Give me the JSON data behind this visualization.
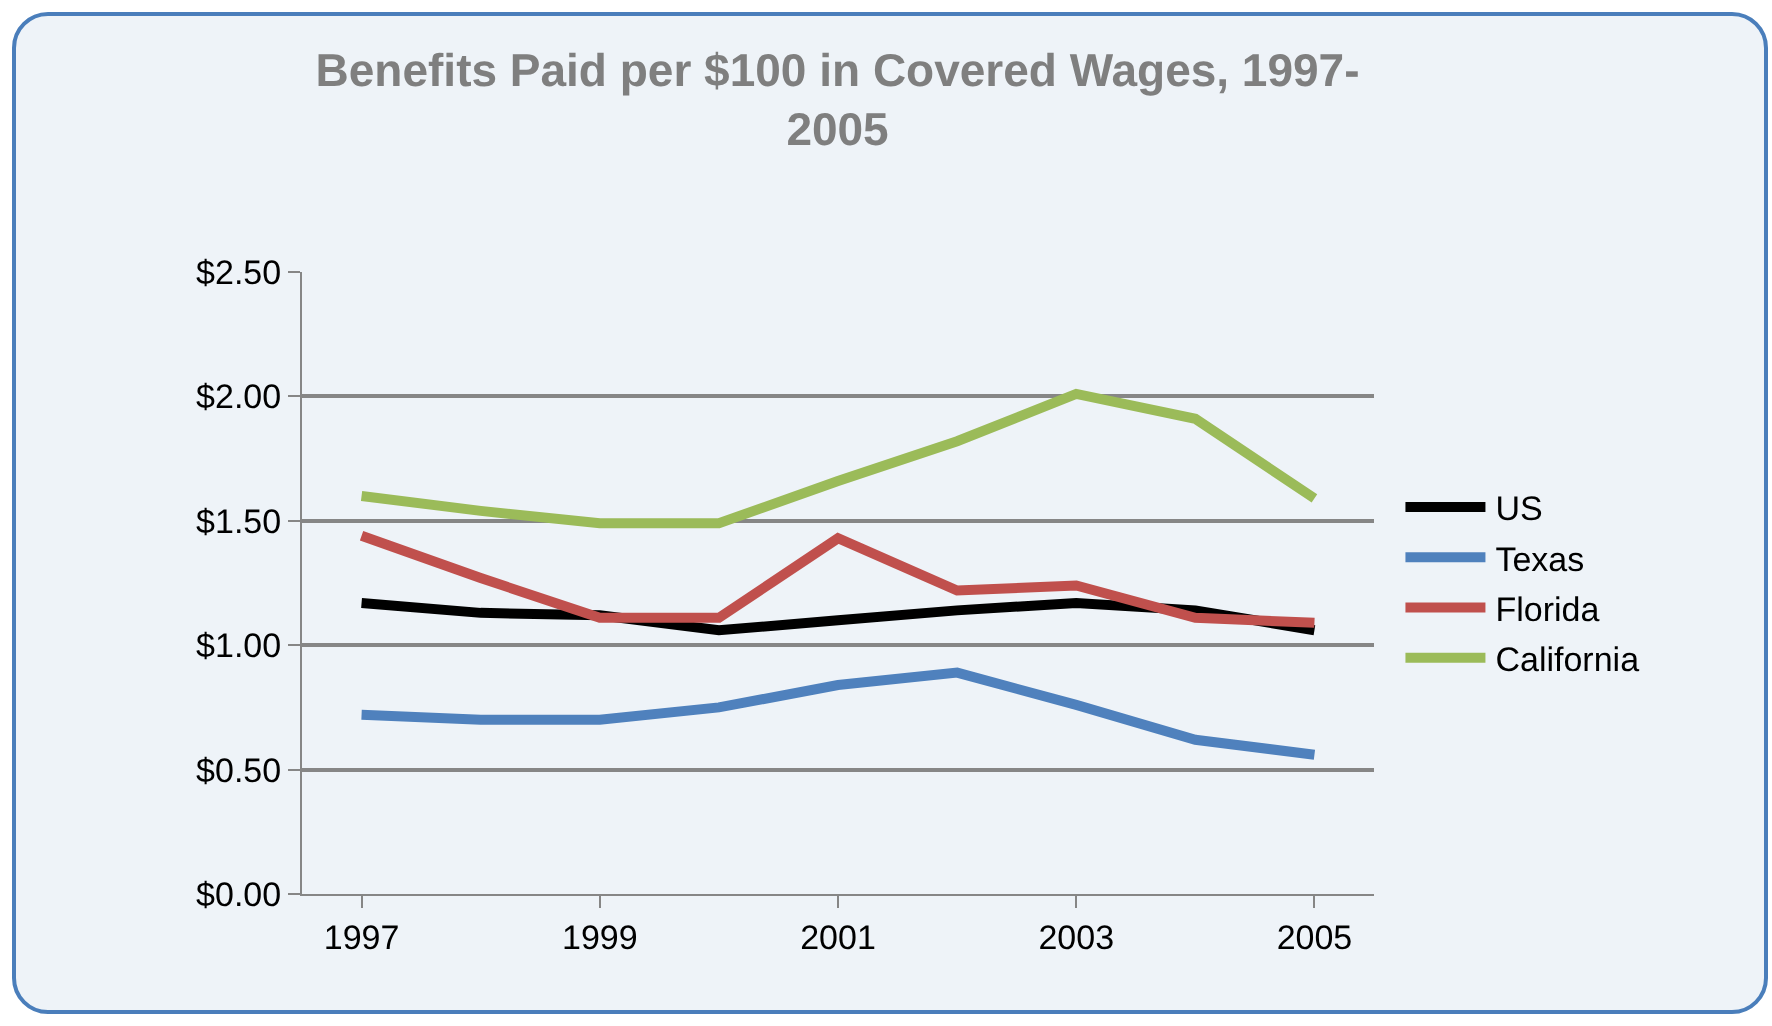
{
  "chart_data": {
    "type": "line",
    "title": "Benefits Paid per $100 in Covered Wages, 1997-2005",
    "x": [
      1997,
      1998,
      1999,
      2000,
      2001,
      2002,
      2003,
      2004,
      2005
    ],
    "series": [
      {
        "name": "US",
        "color": "#000000",
        "values": [
          1.17,
          1.13,
          1.12,
          1.06,
          1.1,
          1.14,
          1.17,
          1.14,
          1.06
        ]
      },
      {
        "name": "Texas",
        "color": "#4f81bd",
        "values": [
          0.72,
          0.7,
          0.7,
          0.75,
          0.84,
          0.89,
          0.76,
          0.62,
          0.56
        ]
      },
      {
        "name": "Florida",
        "color": "#c0504d",
        "values": [
          1.44,
          1.27,
          1.11,
          1.11,
          1.43,
          1.22,
          1.24,
          1.11,
          1.09
        ]
      },
      {
        "name": "California",
        "color": "#9bbb59",
        "values": [
          1.6,
          1.54,
          1.49,
          1.49,
          1.66,
          1.82,
          2.01,
          1.91,
          1.59
        ]
      }
    ],
    "xlim": [
      1996.5,
      2005.5
    ],
    "xticks": [
      1997,
      1999,
      2001,
      2003,
      2005
    ],
    "ylim": [
      0,
      2.5
    ],
    "yticks": [
      {
        "value": 0,
        "label": "$0.00"
      },
      {
        "value": 0.5,
        "label": "$0.50"
      },
      {
        "value": 1,
        "label": "$1.00"
      },
      {
        "value": 1.5,
        "label": "$1.50"
      },
      {
        "value": 2,
        "label": "$2.00"
      },
      {
        "value": 2.5,
        "label": "$2.50"
      }
    ],
    "grid": "y",
    "legend": "right",
    "marker": "none",
    "line_style": "solid"
  }
}
